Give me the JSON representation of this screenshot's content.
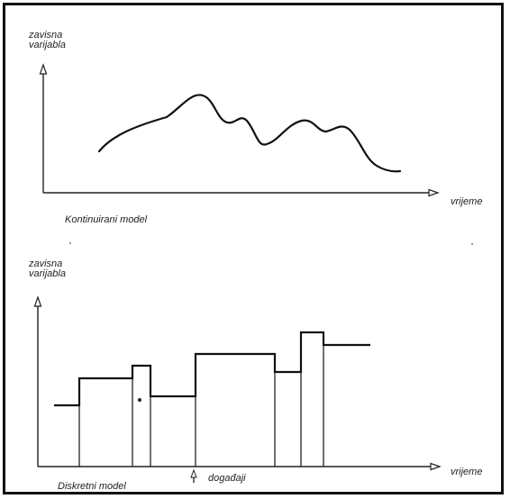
{
  "top_panel": {
    "y_label_line1": "zavisna",
    "y_label_line2": "varijabla",
    "x_label": "vrijeme",
    "caption": "Kontinuirani model"
  },
  "bottom_panel": {
    "y_label_line1": "zavisna",
    "y_label_line2": "varijabla",
    "x_label": "vrijeme",
    "caption": "Diskretni model",
    "event_label": "događaji"
  }
}
